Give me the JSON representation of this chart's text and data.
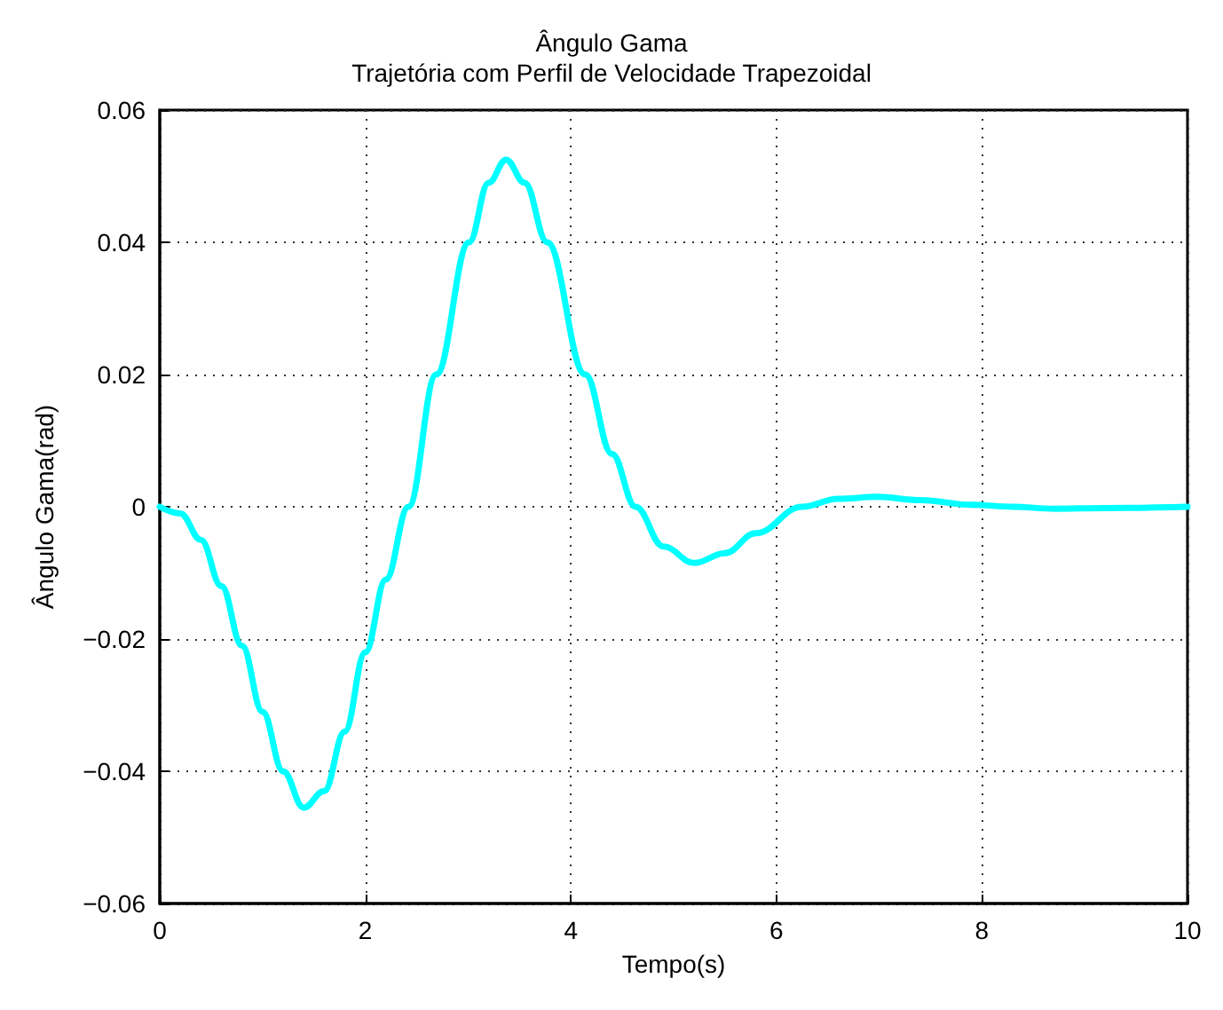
{
  "chart_data": {
    "type": "line",
    "title": "Ângulo Gama",
    "subtitle": "Trajetória com Perfil de Velocidade Trapezoidal",
    "xlabel": "Tempo(s)",
    "ylabel": "Ângulo Gama(rad)",
    "xlim": [
      0,
      10
    ],
    "ylim": [
      -0.06,
      0.06
    ],
    "xticks": [
      0,
      2,
      4,
      6,
      8,
      10
    ],
    "yticks": [
      -0.06,
      -0.04,
      -0.02,
      0,
      0.02,
      0.04,
      0.06
    ],
    "grid": true,
    "marker": "none",
    "line_style": "solid",
    "series": [
      {
        "color": "#00ffff",
        "x": [
          0,
          0.2,
          0.4,
          0.6,
          0.8,
          1.0,
          1.2,
          1.4,
          1.6,
          1.8,
          2.0,
          2.2,
          2.42,
          2.69,
          3.01,
          3.2,
          3.37,
          3.55,
          3.77,
          4.14,
          4.4,
          4.63,
          4.9,
          5.2,
          5.5,
          5.8,
          6.25,
          6.6,
          6.98,
          7.4,
          7.9,
          8.3,
          8.7,
          9.2,
          10
        ],
        "values": [
          0,
          -0.001,
          -0.005,
          -0.012,
          -0.021,
          -0.031,
          -0.04,
          -0.0455,
          -0.043,
          -0.034,
          -0.022,
          -0.011,
          0,
          0.02,
          0.04,
          0.049,
          0.0525,
          0.049,
          0.04,
          0.02,
          0.008,
          0,
          -0.006,
          -0.0085,
          -0.007,
          -0.004,
          0,
          0.0012,
          0.0015,
          0.001,
          0.0003,
          0,
          -0.0003,
          -0.0002,
          0
        ]
      }
    ]
  }
}
